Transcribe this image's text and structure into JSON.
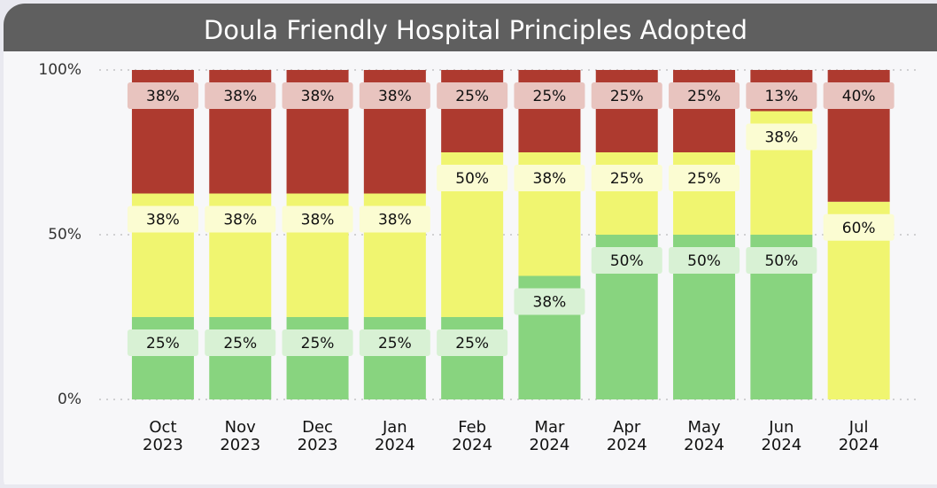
{
  "chart_data": {
    "type": "stacked_bar_100",
    "title": "Doula Friendly Hospital Principles Adopted",
    "categories": [
      [
        "Oct",
        "2023"
      ],
      [
        "Nov",
        "2023"
      ],
      [
        "Dec",
        "2023"
      ],
      [
        "Jan",
        "2024"
      ],
      [
        "Feb",
        "2024"
      ],
      [
        "Mar",
        "2024"
      ],
      [
        "Apr",
        "2024"
      ],
      [
        "May",
        "2024"
      ],
      [
        "Jun",
        "2024"
      ],
      [
        "Jul",
        "2024"
      ]
    ],
    "series": [
      {
        "color": "#88d47f",
        "label_bg": "#d8f1d4",
        "values": [
          25,
          25,
          25,
          25,
          25,
          37.5,
          50,
          50,
          50,
          0
        ],
        "value_labels": [
          "25%",
          "25%",
          "25%",
          "25%",
          "25%",
          "38%",
          "50%",
          "50%",
          "50%",
          null
        ]
      },
      {
        "color": "#f0f570",
        "label_bg": "#fbfcd2",
        "values": [
          37.5,
          37.5,
          37.5,
          37.5,
          50,
          37.5,
          25,
          25,
          37.5,
          60
        ],
        "value_labels": [
          "38%",
          "38%",
          "38%",
          "38%",
          "50%",
          "38%",
          "25%",
          "25%",
          "38%",
          "60%"
        ]
      },
      {
        "color": "#ae3a2f",
        "label_bg": "#e8c4bf",
        "values": [
          37.5,
          37.5,
          37.5,
          37.5,
          25,
          25,
          25,
          25,
          12.5,
          40
        ],
        "value_labels": [
          "38%",
          "38%",
          "38%",
          "38%",
          "25%",
          "25%",
          "25%",
          "25%",
          "13%",
          "40%"
        ]
      }
    ],
    "ylim": [
      0,
      100
    ],
    "yticks": [
      {
        "value": 0,
        "label": "0%"
      },
      {
        "value": 50,
        "label": "50%"
      },
      {
        "value": 100,
        "label": "100%"
      }
    ],
    "grid": true
  }
}
